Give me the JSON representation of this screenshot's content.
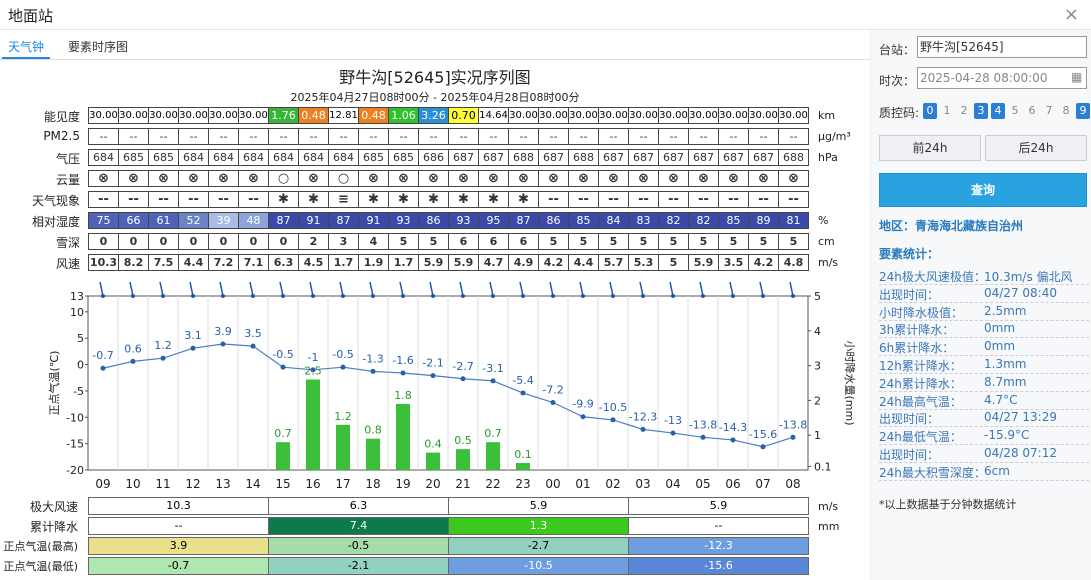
{
  "window": {
    "title": "地面站",
    "close": "×"
  },
  "tabs": [
    "天气钟",
    "要素时序图"
  ],
  "title": "野牛沟[52645]实况序列图",
  "subtitle": "2025年04月27日08时00分 - 2025年04月28日08时00分",
  "rows": [
    {
      "label": "能见度",
      "unit": "km",
      "values": [
        "30.00",
        "30.00",
        "30.00",
        "30.00",
        "30.00",
        "30.00",
        "1.76",
        "0.48",
        "12.81",
        "0.48",
        "1.06",
        "3.26",
        "0.70",
        "14.64",
        "30.00",
        "30.00",
        "30.00",
        "30.00",
        "30.00",
        "30.00",
        "30.00",
        "30.00",
        "30.00",
        "30.00"
      ]
    },
    {
      "label": "PM2.5",
      "unit": "μg/m³",
      "values": [
        "--",
        "--",
        "--",
        "--",
        "--",
        "--",
        "--",
        "--",
        "--",
        "--",
        "--",
        "--",
        "--",
        "--",
        "--",
        "--",
        "--",
        "--",
        "--",
        "--",
        "--",
        "--",
        "--",
        "--"
      ]
    },
    {
      "label": "气压",
      "unit": "hPa",
      "values": [
        "684",
        "685",
        "685",
        "684",
        "684",
        "684",
        "684",
        "684",
        "684",
        "685",
        "685",
        "686",
        "687",
        "687",
        "688",
        "687",
        "688",
        "687",
        "687",
        "687",
        "687",
        "687",
        "687",
        "688"
      ]
    },
    {
      "label": "云量",
      "unit": "",
      "values": [
        "⊗",
        "⊗",
        "⊗",
        "⊗",
        "⊗",
        "⊗",
        "○",
        "⊗",
        "○",
        "⊗",
        "⊗",
        "⊗",
        "⊗",
        "⊗",
        "⊗",
        "⊗",
        "⊗",
        "⊗",
        "⊗",
        "⊗",
        "⊗",
        "⊗",
        "⊗",
        "⊗"
      ]
    },
    {
      "label": "天气现象",
      "unit": "",
      "values": [
        "--",
        "--",
        "--",
        "--",
        "--",
        "--",
        "✱",
        "✱",
        "≡",
        "✱",
        "✱",
        "✱",
        "✱",
        "✱",
        "✱",
        "--",
        "--",
        "--",
        "--",
        "--",
        "--",
        "--",
        "--",
        "--"
      ]
    },
    {
      "label": "相对湿度",
      "unit": "%",
      "values": [
        "75",
        "66",
        "61",
        "52",
        "39",
        "48",
        "87",
        "91",
        "87",
        "91",
        "93",
        "86",
        "93",
        "95",
        "87",
        "86",
        "85",
        "84",
        "83",
        "82",
        "82",
        "85",
        "89",
        "81"
      ]
    },
    {
      "label": "雪深",
      "unit": "cm",
      "values": [
        "0",
        "0",
        "0",
        "0",
        "0",
        "0",
        "0",
        "2",
        "3",
        "4",
        "5",
        "5",
        "6",
        "6",
        "6",
        "5",
        "5",
        "5",
        "5",
        "5",
        "5",
        "5",
        "5",
        "5"
      ]
    },
    {
      "label": "风速",
      "unit": "m/s",
      "values": [
        "10.3",
        "8.2",
        "7.5",
        "4.4",
        "7.2",
        "7.1",
        "6.3",
        "4.5",
        "1.7",
        "1.9",
        "1.7",
        "5.9",
        "5.9",
        "4.7",
        "4.9",
        "4.2",
        "4.4",
        "5.7",
        "5.3",
        "5",
        "5.9",
        "3.5",
        "4.2",
        "4.8"
      ]
    }
  ],
  "chart_data": {
    "type": "line",
    "categories": [
      "09",
      "10",
      "11",
      "12",
      "13",
      "14",
      "15",
      "16",
      "17",
      "18",
      "19",
      "20",
      "21",
      "22",
      "23",
      "00",
      "01",
      "02",
      "03",
      "04",
      "05",
      "06",
      "07",
      "08"
    ],
    "temperature": [
      -0.7,
      0.6,
      1.2,
      3.1,
      3.9,
      3.5,
      -0.5,
      -1,
      -0.5,
      -1.3,
      -1.6,
      -2.1,
      -2.7,
      -3.1,
      -5.4,
      -7.2,
      -9.9,
      -10.5,
      -12.3,
      -13,
      -13.8,
      -14.3,
      -15.6,
      -13.8
    ],
    "precip": [
      0,
      0,
      0,
      0,
      0,
      0,
      0.7,
      2.5,
      1.2,
      0.8,
      1.8,
      0.4,
      0.5,
      0.7,
      0.1,
      0,
      0,
      0,
      0,
      0,
      0,
      0,
      0,
      0
    ],
    "ylabel": "正点气温(℃)",
    "y2label": "小时降水量(mm)",
    "yticks": [
      "13",
      "10",
      "5",
      "0",
      "-5",
      "-10",
      "-15",
      "-20"
    ],
    "y2ticks": [
      "5",
      "4",
      "3",
      "2",
      "1",
      "0.1"
    ],
    "ylim": [
      -20,
      13
    ],
    "y2lim": [
      0,
      5
    ]
  },
  "bottom": [
    {
      "label": "极大风速",
      "unit": "m/s",
      "values": [
        "10.3",
        "6.3",
        "5.9",
        "5.9"
      ]
    },
    {
      "label": "累计降水",
      "unit": "mm",
      "values": [
        "--",
        "7.4",
        "1.3",
        "--"
      ]
    },
    {
      "label": "正点气温(最高)",
      "unit": "",
      "values": [
        "3.9",
        "-0.5",
        "-2.7",
        "-12.3"
      ]
    },
    {
      "label": "正点气温(最低)",
      "unit": "",
      "values": [
        "-0.7",
        "-2.1",
        "-10.5",
        "-15.6"
      ]
    }
  ],
  "side": {
    "station_label": "台站：",
    "station": "野牛沟[52645]",
    "time_label": "时次：",
    "time": "2025-04-28 08:00:00",
    "qc_label": "质控码:",
    "qc": [
      "0",
      "1",
      "2",
      "3",
      "4",
      "5",
      "6",
      "7",
      "8",
      "9"
    ],
    "prev": "前24h",
    "next": "后24h",
    "query": "查询",
    "region": "地区：青海海北藏族自治州",
    "stats_title": "要素统计：",
    "stats": [
      {
        "k": "24h极大风速极值：",
        "v": "10.3m/s 偏北风"
      },
      {
        "k": "出现时间：",
        "v": "04/27 08:40"
      },
      {
        "k": "小时降水极值：",
        "v": "2.5mm"
      },
      {
        "k": "3h累计降水：",
        "v": "0mm"
      },
      {
        "k": "6h累计降水：",
        "v": "0mm"
      },
      {
        "k": "12h累计降水：",
        "v": "1.3mm"
      },
      {
        "k": "24h累计降水：",
        "v": "8.7mm"
      },
      {
        "k": "24h最高气温：",
        "v": "4.7°C"
      },
      {
        "k": "出现时间：",
        "v": "04/27 13:29"
      },
      {
        "k": "24h最低气温：",
        "v": "-15.9°C"
      },
      {
        "k": "出现时间：",
        "v": "04/28 07:12"
      },
      {
        "k": "24h最大积雪深度：",
        "v": "6cm"
      }
    ],
    "note": "*以上数据基于分钟数据统计"
  },
  "colors": {
    "accent": "#1e88e5",
    "humid_dark": "#3b4aa8"
  }
}
